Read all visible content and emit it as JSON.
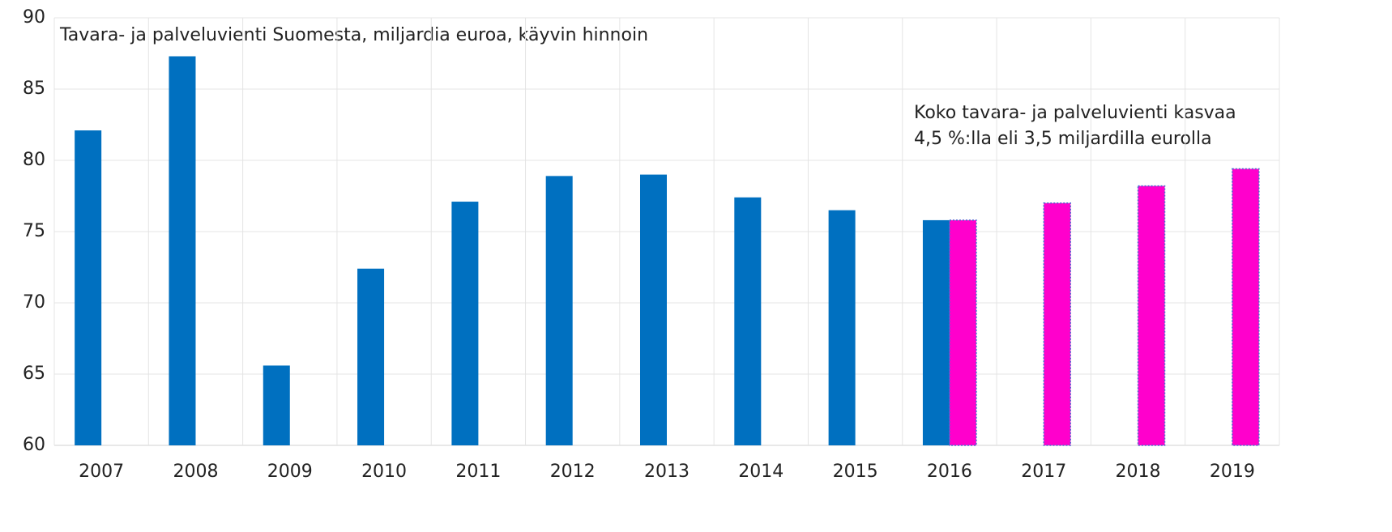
{
  "chart_data": {
    "type": "bar",
    "title": "Tavara- ja palveluvienti Suomesta, miljardia euroa, käyvin hinnoin",
    "annotations": [
      "Koko tavara- ja palveluvienti kasvaa",
      "4,5 %:lla eli 3,5 miljardilla eurolla"
    ],
    "categories": [
      "2007",
      "2008",
      "2009",
      "2010",
      "2011",
      "2012",
      "2013",
      "2014",
      "2015",
      "2016",
      "2017",
      "2018",
      "2019"
    ],
    "series": [
      {
        "color": "#0070c0",
        "values": [
          82.1,
          87.3,
          65.6,
          72.4,
          77.1,
          78.9,
          79.0,
          77.4,
          76.5,
          75.8,
          null,
          null,
          null
        ]
      },
      {
        "color": "#ff00cc",
        "values": [
          null,
          null,
          null,
          null,
          null,
          null,
          null,
          null,
          null,
          75.8,
          77.0,
          78.2,
          79.4
        ]
      }
    ],
    "ylim": [
      60,
      90
    ],
    "yticks": [
      60,
      65,
      70,
      75,
      80,
      85,
      90
    ],
    "grid": true
  }
}
